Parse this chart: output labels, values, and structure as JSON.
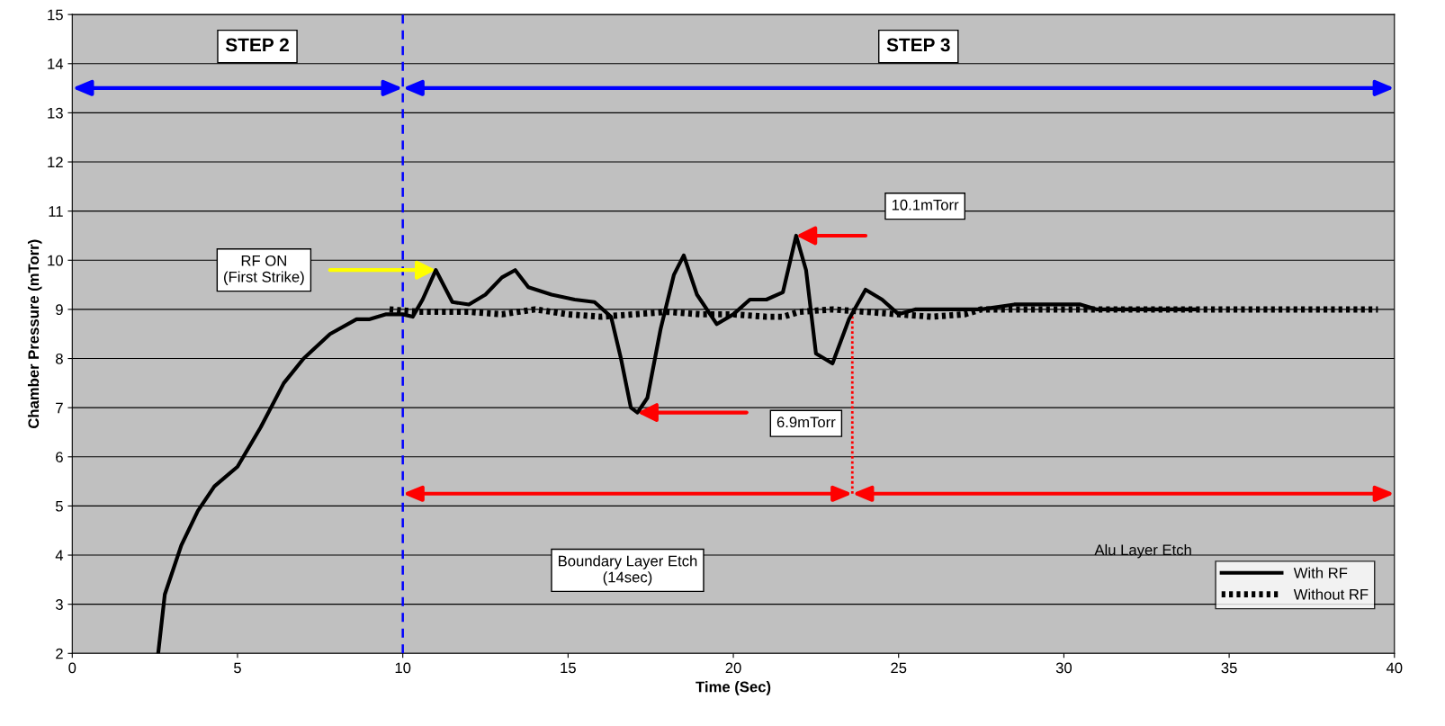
{
  "chart_data": {
    "type": "line",
    "xlabel": "Time (Sec)",
    "ylabel": "Chamber Pressure (mTorr)",
    "xlim": [
      0,
      40
    ],
    "xticks": [
      0,
      5,
      10,
      15,
      20,
      25,
      30,
      35,
      40
    ],
    "ylim": [
      2,
      15
    ],
    "yticks": [
      2,
      3,
      4,
      5,
      6,
      7,
      8,
      9,
      10,
      11,
      12,
      13,
      14,
      15
    ],
    "grid": "y",
    "legend": "bottom right",
    "marker": "none",
    "series": [
      {
        "name": "With RF",
        "color": "#000000",
        "line_style": "solid",
        "x": [
          2.6,
          2.8,
          3.3,
          3.8,
          4.3,
          5.0,
          5.7,
          6.4,
          7.0,
          7.8,
          8.6,
          9.0,
          9.5,
          10.0,
          10.3,
          10.6,
          11.0,
          11.5,
          12.0,
          12.5,
          13.0,
          13.4,
          13.8,
          14.5,
          15.2,
          15.8,
          16.3,
          16.6,
          16.9,
          17.1,
          17.4,
          17.8,
          18.2,
          18.5,
          18.9,
          19.5,
          20.0,
          20.5,
          21.0,
          21.5,
          21.9,
          22.2,
          22.5,
          23.0,
          23.5,
          24.0,
          24.5,
          25.0,
          25.5,
          27.5,
          28.5,
          30.5,
          31.0,
          34.0
        ],
        "values": [
          2.0,
          3.2,
          4.2,
          4.9,
          5.4,
          5.8,
          6.6,
          7.5,
          8.0,
          8.5,
          8.8,
          8.8,
          8.9,
          8.9,
          8.85,
          9.2,
          9.8,
          9.15,
          9.1,
          9.3,
          9.65,
          9.8,
          9.45,
          9.3,
          9.2,
          9.15,
          8.85,
          8.0,
          7.0,
          6.9,
          7.2,
          8.6,
          9.7,
          10.1,
          9.3,
          8.7,
          8.9,
          9.2,
          9.2,
          9.35,
          10.5,
          9.8,
          8.1,
          7.9,
          8.8,
          9.4,
          9.2,
          8.9,
          9.0,
          9.0,
          9.1,
          9.1,
          9.0,
          9.0
        ]
      },
      {
        "name": "Without RF",
        "color": "#000000",
        "line_style": "dotted",
        "x": [
          9.6,
          10.5,
          12,
          13,
          14,
          15,
          16,
          17,
          18,
          19,
          20,
          21,
          21.5,
          22,
          23,
          24,
          25,
          26,
          27,
          27.5,
          34,
          39.5
        ],
        "values": [
          9.0,
          8.95,
          8.95,
          8.9,
          9.0,
          8.9,
          8.85,
          8.9,
          8.95,
          8.9,
          8.9,
          8.85,
          8.85,
          8.95,
          9.0,
          8.95,
          8.9,
          8.85,
          8.9,
          9.0,
          9.0,
          9.0
        ]
      }
    ],
    "ref_lines": [
      {
        "axis": "x",
        "value": 10,
        "color": "#0000ff",
        "line_style": "dashed"
      },
      {
        "axis": "x",
        "value": 23.6,
        "color": "#ff0000",
        "line_style": "dotted"
      }
    ],
    "annotations": [
      "STEP 2",
      "STEP 3",
      "Boundary Layer Etch\n(14sec)",
      "Alu Layer Etch",
      "RF ON\n(First Strike)",
      "6.9mTorr",
      "10.1mTorr"
    ]
  }
}
